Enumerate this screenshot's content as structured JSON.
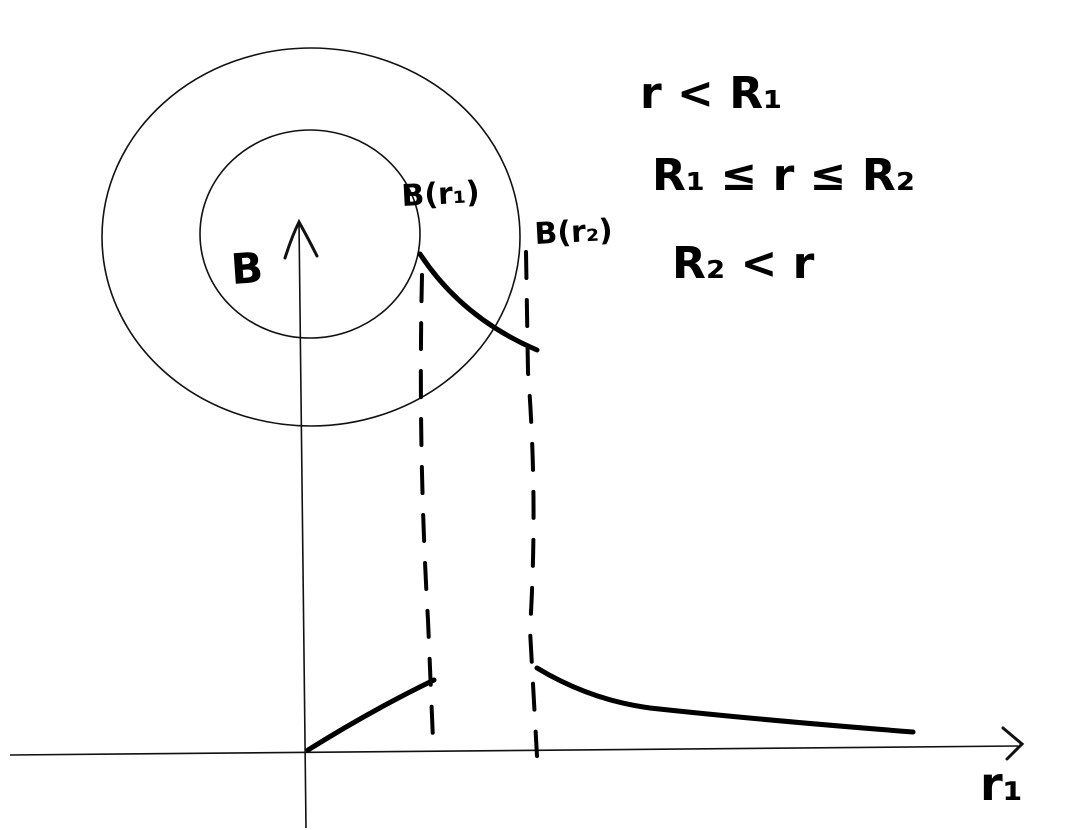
{
  "diagram": {
    "inner_circle_label": "B",
    "inner_boundary_label": "B(r₁)",
    "outer_boundary_label": "B(r₂)",
    "x_axis_label": "r₁",
    "conditions": [
      "r < R₁",
      "R₁ ≤ r ≤ R₂",
      "R₂ < r"
    ]
  }
}
